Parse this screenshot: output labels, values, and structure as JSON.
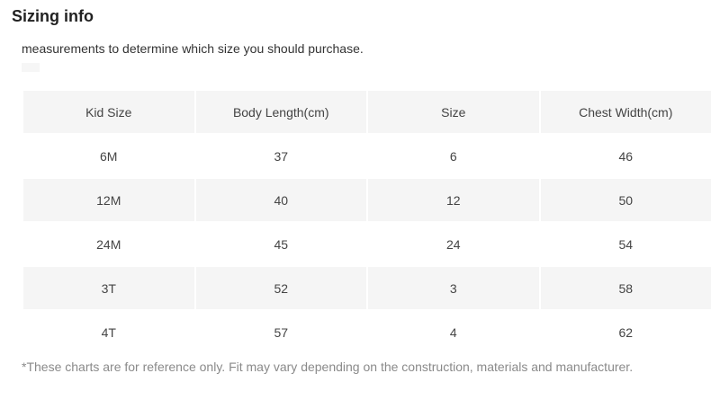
{
  "section": {
    "title": "Sizing info",
    "intro": "measurements to determine which size you should purchase."
  },
  "table": {
    "headers": [
      "Kid Size",
      "Body Length(cm)",
      "Size",
      "Chest Width(cm)"
    ],
    "rows": [
      [
        "6M",
        "37",
        "6",
        "46"
      ],
      [
        "12M",
        "40",
        "12",
        "50"
      ],
      [
        "24M",
        "45",
        "24",
        "54"
      ],
      [
        "3T",
        "52",
        "3",
        "58"
      ],
      [
        "4T",
        "57",
        "4",
        "62"
      ]
    ]
  },
  "footnote": "*These charts are for reference only. Fit may vary depending on the construction, materials and manufacturer.",
  "colors": {
    "header_bg": "#f5f5f5",
    "stripe_bg": "#f5f5f5",
    "text": "#444444",
    "footnote_text": "#8a8a8a"
  }
}
